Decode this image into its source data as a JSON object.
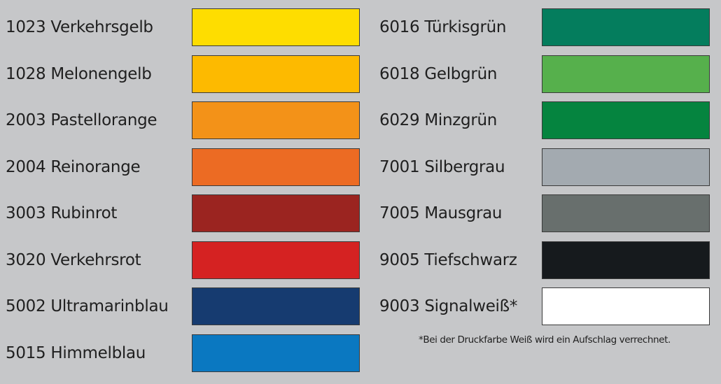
{
  "left_column": [
    {
      "label": "1023 Verkehrsgelb",
      "color": "#fedd00"
    },
    {
      "label": "1028 Melonengelb",
      "color": "#fdba00"
    },
    {
      "label": "2003 Pastellorange",
      "color": "#f39218"
    },
    {
      "label": "2004 Reinorange",
      "color": "#ec6b23"
    },
    {
      "label": "3003 Rubinrot",
      "color": "#9b2420"
    },
    {
      "label": "3020 Verkehrsrot",
      "color": "#d52222"
    },
    {
      "label": "5002 Ultramarinblau",
      "color": "#163b70"
    },
    {
      "label": "5015 Himmelblau",
      "color": "#0a78c1"
    }
  ],
  "right_column": [
    {
      "label": "6016 Türkisgrün",
      "color": "#047d5d"
    },
    {
      "label": "6018 Gelbgrün",
      "color": "#56b04c"
    },
    {
      "label": "6029 Minzgrün",
      "color": "#05843f"
    },
    {
      "label": "7001 Silbergrau",
      "color": "#a3aab0"
    },
    {
      "label": "7005 Mausgrau",
      "color": "#686f6d"
    },
    {
      "label": "9005 Tiefschwarz",
      "color": "#161a1d"
    },
    {
      "label": "9003 Signalweiß*",
      "color": "#ffffff"
    }
  ],
  "footnote": "*Bei der Druckfarbe Weiß wird ein Aufschlag verrechnet."
}
